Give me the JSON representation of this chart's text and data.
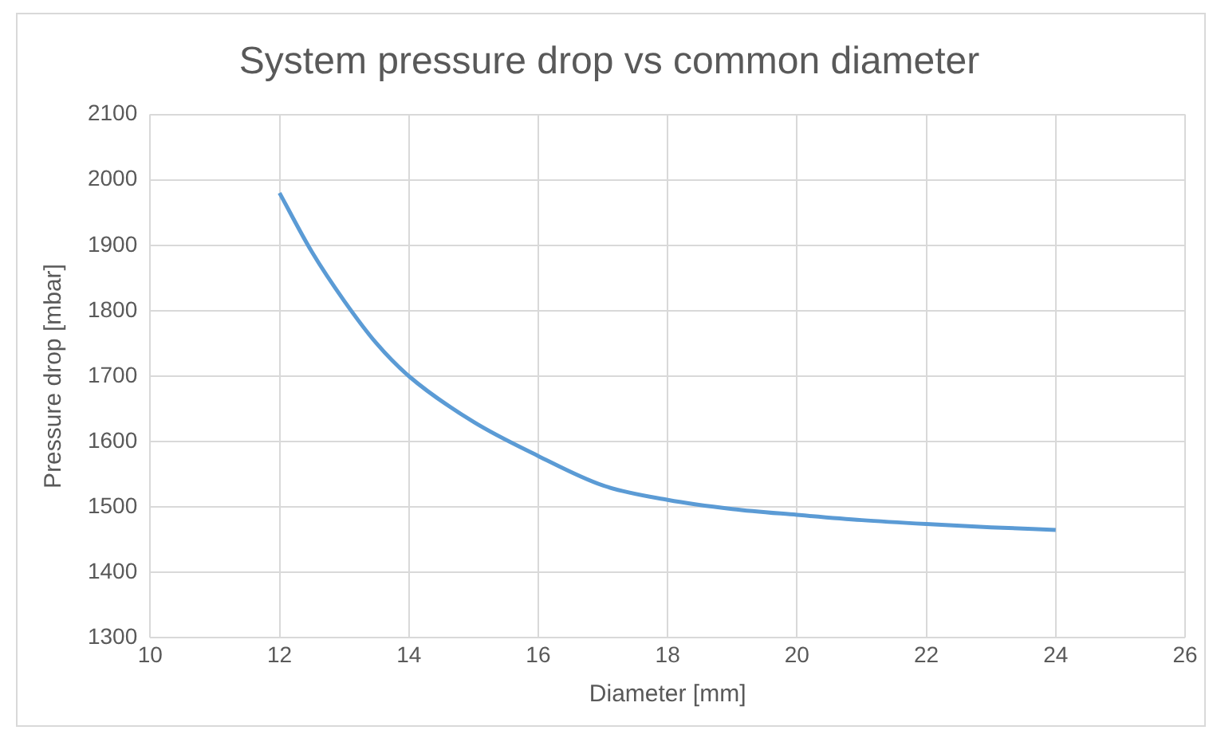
{
  "chart_data": {
    "type": "line",
    "title": "System pressure drop vs common diameter",
    "xlabel": "Diameter [mm]",
    "ylabel": "Pressure drop [mbar]",
    "x": [
      12,
      12.5,
      13,
      13.5,
      14,
      15,
      16,
      17,
      18,
      19,
      20,
      21,
      22,
      23,
      24
    ],
    "series": [
      {
        "color": "#5b9bd5",
        "values": [
          1980,
          1890,
          1815,
          1750,
          1700,
          1630,
          1578,
          1533,
          1511,
          1497,
          1488,
          1480,
          1474,
          1469,
          1465
        ]
      }
    ],
    "xlim": [
      10,
      26
    ],
    "xticks": [
      10,
      12,
      14,
      16,
      18,
      20,
      22,
      24,
      26
    ],
    "ylim": [
      1300,
      2100
    ],
    "yticks": [
      1300,
      1400,
      1500,
      1600,
      1700,
      1800,
      1900,
      2000,
      2100
    ],
    "grid": true,
    "legend": false,
    "marker": "none",
    "line_style": "solid"
  }
}
